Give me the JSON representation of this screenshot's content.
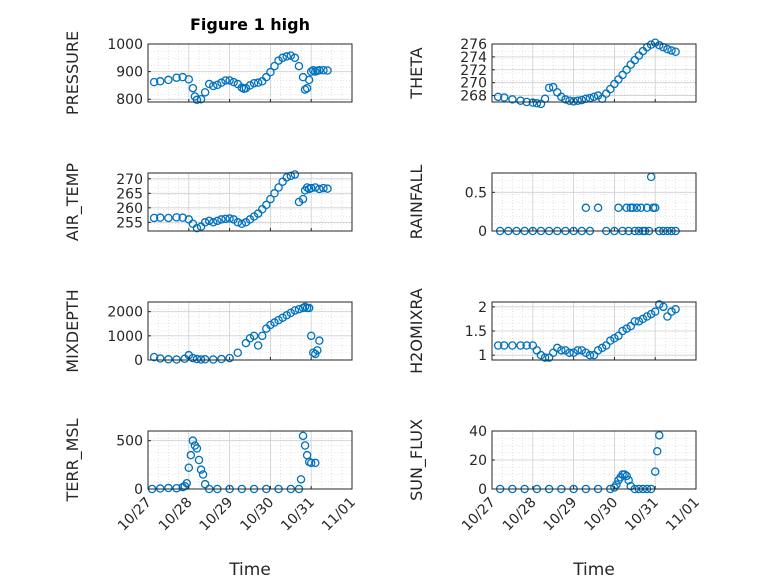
{
  "figure": {
    "title": "Figure 1 high",
    "xlabel": "Time"
  },
  "chart_data": [
    {
      "type": "scatter",
      "title": "Figure 1 high",
      "ylabel": "PRESSURE",
      "xlabel": "",
      "xticks": [
        "10/27",
        "10/28",
        "10/29",
        "10/30",
        "10/31",
        "11/01"
      ],
      "xlim": [
        0,
        5
      ],
      "ylim": [
        790,
        1000
      ],
      "yticks": [
        800,
        900,
        1000
      ],
      "grid": true,
      "marker_color": "#0072BD",
      "x": [
        0.15,
        0.3,
        0.5,
        0.7,
        0.85,
        1.0,
        1.1,
        1.15,
        1.2,
        1.3,
        1.4,
        1.5,
        1.6,
        1.7,
        1.8,
        1.9,
        2.0,
        2.1,
        2.2,
        2.3,
        2.35,
        2.4,
        2.5,
        2.6,
        2.7,
        2.8,
        2.9,
        3.0,
        3.1,
        3.2,
        3.3,
        3.4,
        3.5,
        3.6,
        3.7,
        3.8,
        3.85,
        3.9,
        3.95,
        4.0,
        4.05,
        4.1,
        4.15,
        4.2,
        4.3,
        4.4
      ],
      "y": [
        862,
        865,
        870,
        878,
        880,
        872,
        840,
        810,
        798,
        800,
        825,
        855,
        848,
        852,
        860,
        868,
        868,
        862,
        855,
        842,
        838,
        840,
        850,
        858,
        860,
        865,
        880,
        898,
        920,
        940,
        950,
        955,
        958,
        950,
        920,
        880,
        835,
        840,
        870,
        900,
        905,
        900,
        903,
        905,
        905,
        904
      ]
    },
    {
      "type": "scatter",
      "ylabel": "THETA",
      "xlabel": "",
      "xticks": [
        "10/27",
        "10/28",
        "10/29",
        "10/30",
        "10/31",
        "11/01"
      ],
      "xlim": [
        0,
        5
      ],
      "ylim": [
        267,
        276
      ],
      "yticks": [
        268,
        270,
        272,
        274,
        276
      ],
      "grid": true,
      "marker_color": "#0072BD",
      "x": [
        0.15,
        0.3,
        0.5,
        0.7,
        0.85,
        1.0,
        1.1,
        1.2,
        1.3,
        1.4,
        1.5,
        1.6,
        1.7,
        1.8,
        1.9,
        2.0,
        2.1,
        2.2,
        2.3,
        2.4,
        2.5,
        2.6,
        2.7,
        2.8,
        2.9,
        3.0,
        3.1,
        3.2,
        3.3,
        3.4,
        3.5,
        3.6,
        3.7,
        3.8,
        3.9,
        4.0,
        4.1,
        4.2,
        4.3,
        4.4,
        4.5
      ],
      "y": [
        267.8,
        267.7,
        267.4,
        267.2,
        267.0,
        266.9,
        266.8,
        266.7,
        267.5,
        269.2,
        269.3,
        268.5,
        267.8,
        267.4,
        267.2,
        267.1,
        267.2,
        267.3,
        267.5,
        267.6,
        267.8,
        268.0,
        267.5,
        268.3,
        269.0,
        269.8,
        270.5,
        271.2,
        272.0,
        272.8,
        273.5,
        274.2,
        274.9,
        275.5,
        275.9,
        276.2,
        275.8,
        275.5,
        275.2,
        275.0,
        274.8
      ]
    },
    {
      "type": "scatter",
      "ylabel": "AIR_TEMP",
      "xlabel": "",
      "xticks": [
        "10/27",
        "10/28",
        "10/29",
        "10/30",
        "10/31",
        "11/01"
      ],
      "xlim": [
        0,
        5
      ],
      "ylim": [
        252,
        272
      ],
      "yticks": [
        255,
        260,
        265,
        270
      ],
      "grid": true,
      "marker_color": "#0072BD",
      "x": [
        0.15,
        0.3,
        0.5,
        0.7,
        0.85,
        1.0,
        1.1,
        1.2,
        1.3,
        1.4,
        1.5,
        1.6,
        1.7,
        1.8,
        1.9,
        2.0,
        2.1,
        2.2,
        2.3,
        2.4,
        2.5,
        2.6,
        2.7,
        2.8,
        2.9,
        3.0,
        3.1,
        3.2,
        3.3,
        3.4,
        3.5,
        3.6,
        3.7,
        3.8,
        3.85,
        3.9,
        3.95,
        4.0,
        4.1,
        4.2,
        4.3,
        4.4
      ],
      "y": [
        256.5,
        256.6,
        256.5,
        256.7,
        256.6,
        256.0,
        254.5,
        253.0,
        253.5,
        255.0,
        255.5,
        255.0,
        255.5,
        256.0,
        256.2,
        256.3,
        256.0,
        255.0,
        254.5,
        255.0,
        256.0,
        257.0,
        258.0,
        259.5,
        261.0,
        263.0,
        265.0,
        267.0,
        269.0,
        270.5,
        271.0,
        271.5,
        262.0,
        263.0,
        266.0,
        267.0,
        266.5,
        266.8,
        267.0,
        266.5,
        266.8,
        266.6
      ]
    },
    {
      "type": "scatter",
      "ylabel": "RAINFALL",
      "xlabel": "",
      "xticks": [
        "10/27",
        "10/28",
        "10/29",
        "10/30",
        "10/31",
        "11/01"
      ],
      "xlim": [
        0,
        5
      ],
      "ylim": [
        0,
        0.75
      ],
      "yticks": [
        0,
        0.5
      ],
      "grid": true,
      "marker_color": "#0072BD",
      "x": [
        0.2,
        0.4,
        0.6,
        0.8,
        1.0,
        1.2,
        1.4,
        1.6,
        1.8,
        2.0,
        2.2,
        2.3,
        2.4,
        2.6,
        2.8,
        3.0,
        3.1,
        3.2,
        3.3,
        3.35,
        3.4,
        3.45,
        3.5,
        3.55,
        3.6,
        3.65,
        3.7,
        3.75,
        3.8,
        3.85,
        3.9,
        3.95,
        4.0,
        4.1,
        4.2,
        4.3,
        4.4,
        4.5
      ],
      "y": [
        0,
        0,
        0,
        0,
        0,
        0,
        0,
        0,
        0,
        0,
        0,
        0.3,
        0,
        0.3,
        0,
        0,
        0.3,
        0,
        0.3,
        0,
        0.3,
        0.3,
        0,
        0.3,
        0,
        0.3,
        0,
        0,
        0.3,
        0,
        0.7,
        0.3,
        0.3,
        0,
        0,
        0,
        0,
        0
      ]
    },
    {
      "type": "scatter",
      "ylabel": "MIXDEPTH",
      "xlabel": "",
      "xticks": [
        "10/27",
        "10/28",
        "10/29",
        "10/30",
        "10/31",
        "11/01"
      ],
      "xlim": [
        0,
        5
      ],
      "ylim": [
        0,
        2400
      ],
      "yticks": [
        0,
        1000,
        2000
      ],
      "grid": true,
      "marker_color": "#0072BD",
      "x": [
        0.15,
        0.3,
        0.5,
        0.7,
        0.9,
        1.0,
        1.1,
        1.2,
        1.3,
        1.4,
        1.6,
        1.8,
        2.0,
        2.2,
        2.4,
        2.5,
        2.6,
        2.7,
        2.8,
        2.9,
        3.0,
        3.1,
        3.2,
        3.3,
        3.4,
        3.5,
        3.6,
        3.7,
        3.8,
        3.85,
        3.9,
        3.95,
        4.0,
        4.05,
        4.1,
        4.15,
        4.2
      ],
      "y": [
        120,
        60,
        30,
        20,
        50,
        200,
        80,
        40,
        20,
        30,
        20,
        40,
        80,
        300,
        700,
        900,
        1000,
        600,
        1000,
        1300,
        1450,
        1550,
        1650,
        1750,
        1850,
        1950,
        2050,
        2100,
        2150,
        2200,
        2150,
        2150,
        1000,
        300,
        250,
        400,
        800
      ]
    },
    {
      "type": "scatter",
      "ylabel": "H2OMIXRA",
      "xlabel": "",
      "xticks": [
        "10/27",
        "10/28",
        "10/29",
        "10/30",
        "10/31",
        "11/01"
      ],
      "xlim": [
        0,
        5
      ],
      "ylim": [
        0.9,
        2.1
      ],
      "yticks": [
        1,
        1.5,
        2
      ],
      "grid": true,
      "marker_color": "#0072BD",
      "x": [
        0.15,
        0.3,
        0.5,
        0.7,
        0.85,
        1.0,
        1.1,
        1.2,
        1.3,
        1.4,
        1.5,
        1.6,
        1.7,
        1.8,
        1.9,
        2.0,
        2.1,
        2.2,
        2.3,
        2.4,
        2.5,
        2.6,
        2.7,
        2.8,
        2.9,
        3.0,
        3.1,
        3.2,
        3.3,
        3.4,
        3.5,
        3.6,
        3.7,
        3.8,
        3.9,
        4.0,
        4.1,
        4.2,
        4.3,
        4.4,
        4.5
      ],
      "y": [
        1.2,
        1.2,
        1.2,
        1.2,
        1.2,
        1.2,
        1.1,
        1.0,
        0.95,
        0.95,
        1.05,
        1.15,
        1.1,
        1.1,
        1.05,
        1.05,
        1.1,
        1.1,
        1.05,
        1.0,
        1.0,
        1.1,
        1.15,
        1.2,
        1.3,
        1.35,
        1.4,
        1.5,
        1.55,
        1.6,
        1.7,
        1.7,
        1.75,
        1.8,
        1.85,
        1.9,
        2.05,
        2.0,
        1.8,
        1.9,
        1.95
      ]
    },
    {
      "type": "scatter",
      "ylabel": "TERR_MSL",
      "xlabel": "Time",
      "xticks": [
        "10/27",
        "10/28",
        "10/29",
        "10/30",
        "10/31",
        "11/01"
      ],
      "xlim": [
        0,
        5
      ],
      "ylim": [
        0,
        600
      ],
      "yticks": [
        0,
        500
      ],
      "grid": true,
      "marker_color": "#0072BD",
      "x": [
        0.1,
        0.3,
        0.5,
        0.7,
        0.85,
        0.9,
        0.95,
        1.0,
        1.05,
        1.1,
        1.15,
        1.2,
        1.25,
        1.3,
        1.35,
        1.4,
        1.5,
        1.7,
        2.0,
        2.3,
        2.6,
        2.9,
        3.2,
        3.5,
        3.7,
        3.75,
        3.8,
        3.85,
        3.9,
        3.95,
        4.0,
        4.1
      ],
      "y": [
        0,
        5,
        10,
        8,
        20,
        30,
        60,
        220,
        350,
        500,
        450,
        420,
        300,
        200,
        150,
        50,
        0,
        0,
        0,
        0,
        0,
        0,
        0,
        0,
        0,
        100,
        550,
        450,
        350,
        280,
        270,
        270
      ]
    },
    {
      "type": "scatter",
      "ylabel": "SUN_FLUX",
      "xlabel": "Time",
      "xticks": [
        "10/27",
        "10/28",
        "10/29",
        "10/30",
        "10/31",
        "11/01"
      ],
      "xlim": [
        0,
        5
      ],
      "ylim": [
        0,
        40
      ],
      "yticks": [
        0,
        20,
        40
      ],
      "grid": true,
      "marker_color": "#0072BD",
      "x": [
        0.2,
        0.5,
        0.8,
        1.1,
        1.4,
        1.7,
        2.0,
        2.3,
        2.6,
        2.9,
        3.0,
        3.05,
        3.1,
        3.15,
        3.2,
        3.25,
        3.3,
        3.35,
        3.4,
        3.5,
        3.6,
        3.7,
        3.8,
        3.9,
        4.0,
        4.05,
        4.1
      ],
      "y": [
        0,
        0,
        0,
        0,
        0,
        0,
        0,
        0,
        0,
        0,
        1,
        3,
        6,
        8,
        10,
        10,
        9,
        6,
        2,
        0,
        0,
        0,
        0,
        0,
        12,
        26,
        37
      ]
    }
  ]
}
